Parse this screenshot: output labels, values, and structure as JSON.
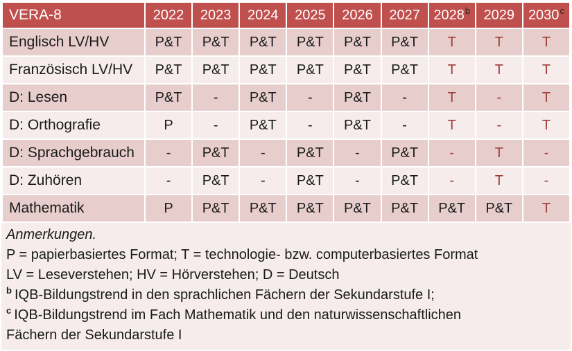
{
  "colors": {
    "header_bg": "#C0504D",
    "header_text": "#FFFFFF",
    "header_sup": "#262626",
    "band_dark": "#E7CECD",
    "band_light": "#F5ECEB",
    "text": "#1A1A1A",
    "accent_red": "#9E3B38"
  },
  "table": {
    "title": "VERA-8",
    "columns": [
      {
        "label": "2022",
        "sup": ""
      },
      {
        "label": "2023",
        "sup": ""
      },
      {
        "label": "2024",
        "sup": ""
      },
      {
        "label": "2025",
        "sup": ""
      },
      {
        "label": "2026",
        "sup": ""
      },
      {
        "label": "2027",
        "sup": ""
      },
      {
        "label": "2028",
        "sup": "b"
      },
      {
        "label": "2029",
        "sup": ""
      },
      {
        "label": "2030",
        "sup": "c"
      }
    ],
    "rows": [
      {
        "label": "Englisch LV/HV",
        "cells": [
          {
            "t": "P&T",
            "red": false
          },
          {
            "t": "P&T",
            "red": false
          },
          {
            "t": "P&T",
            "red": false
          },
          {
            "t": "P&T",
            "red": false
          },
          {
            "t": "P&T",
            "red": false
          },
          {
            "t": "P&T",
            "red": false
          },
          {
            "t": "T",
            "red": true
          },
          {
            "t": "T",
            "red": true
          },
          {
            "t": "T",
            "red": true
          }
        ]
      },
      {
        "label": "Französisch LV/HV",
        "cells": [
          {
            "t": "P&T",
            "red": false
          },
          {
            "t": "P&T",
            "red": false
          },
          {
            "t": "P&T",
            "red": false
          },
          {
            "t": "P&T",
            "red": false
          },
          {
            "t": "P&T",
            "red": false
          },
          {
            "t": "P&T",
            "red": false
          },
          {
            "t": "T",
            "red": true
          },
          {
            "t": "T",
            "red": true
          },
          {
            "t": "T",
            "red": true
          }
        ]
      },
      {
        "label": "D: Lesen",
        "cells": [
          {
            "t": "P&T",
            "red": false
          },
          {
            "t": "-",
            "red": false
          },
          {
            "t": "P&T",
            "red": false
          },
          {
            "t": "-",
            "red": false
          },
          {
            "t": "P&T",
            "red": false
          },
          {
            "t": "-",
            "red": false
          },
          {
            "t": "T",
            "red": true
          },
          {
            "t": "-",
            "red": true
          },
          {
            "t": "T",
            "red": true
          }
        ]
      },
      {
        "label": "D: Orthografie",
        "cells": [
          {
            "t": "P",
            "red": false
          },
          {
            "t": "-",
            "red": false
          },
          {
            "t": "P&T",
            "red": false
          },
          {
            "t": "-",
            "red": false
          },
          {
            "t": "P&T",
            "red": false
          },
          {
            "t": "-",
            "red": false
          },
          {
            "t": "T",
            "red": true
          },
          {
            "t": "-",
            "red": true
          },
          {
            "t": "T",
            "red": true
          }
        ]
      },
      {
        "label": "D: Sprachgebrauch",
        "cells": [
          {
            "t": "-",
            "red": false
          },
          {
            "t": "P&T",
            "red": false
          },
          {
            "t": "-",
            "red": false
          },
          {
            "t": "P&T",
            "red": false
          },
          {
            "t": "-",
            "red": false
          },
          {
            "t": "P&T",
            "red": false
          },
          {
            "t": "-",
            "red": true
          },
          {
            "t": "T",
            "red": true
          },
          {
            "t": "-",
            "red": true
          }
        ]
      },
      {
        "label": "D: Zuhören",
        "cells": [
          {
            "t": "-",
            "red": false
          },
          {
            "t": "P&T",
            "red": false
          },
          {
            "t": "-",
            "red": false
          },
          {
            "t": "P&T",
            "red": false
          },
          {
            "t": "-",
            "red": false
          },
          {
            "t": "P&T",
            "red": false
          },
          {
            "t": "-",
            "red": true
          },
          {
            "t": "T",
            "red": true
          },
          {
            "t": "-",
            "red": true
          }
        ]
      },
      {
        "label": "Mathematik",
        "cells": [
          {
            "t": "P",
            "red": false
          },
          {
            "t": "P&T",
            "red": false
          },
          {
            "t": "P&T",
            "red": false
          },
          {
            "t": "P&T",
            "red": false
          },
          {
            "t": "P&T",
            "red": false
          },
          {
            "t": "P&T",
            "red": false
          },
          {
            "t": "P&T",
            "red": false
          },
          {
            "t": "P&T",
            "red": false
          },
          {
            "t": "T",
            "red": true
          }
        ]
      }
    ]
  },
  "notes": {
    "lines": [
      {
        "sup": "",
        "italic": true,
        "text": "Anmerkungen."
      },
      {
        "sup": "",
        "italic": false,
        "text": "P = papierbasiertes Format; T = technologie- bzw. computerbasiertes Format"
      },
      {
        "sup": "",
        "italic": false,
        "text": "LV = Leseverstehen; HV = Hörverstehen; D = Deutsch"
      },
      {
        "sup": "b",
        "italic": false,
        "text": "IQB-Bildungstrend in den sprachlichen Fächern der Sekundarstufe I;"
      },
      {
        "sup": "c",
        "italic": false,
        "text": "IQB-Bildungstrend im Fach Mathematik und den naturwissenschaftlichen\nFächern der Sekundarstufe I"
      }
    ]
  }
}
